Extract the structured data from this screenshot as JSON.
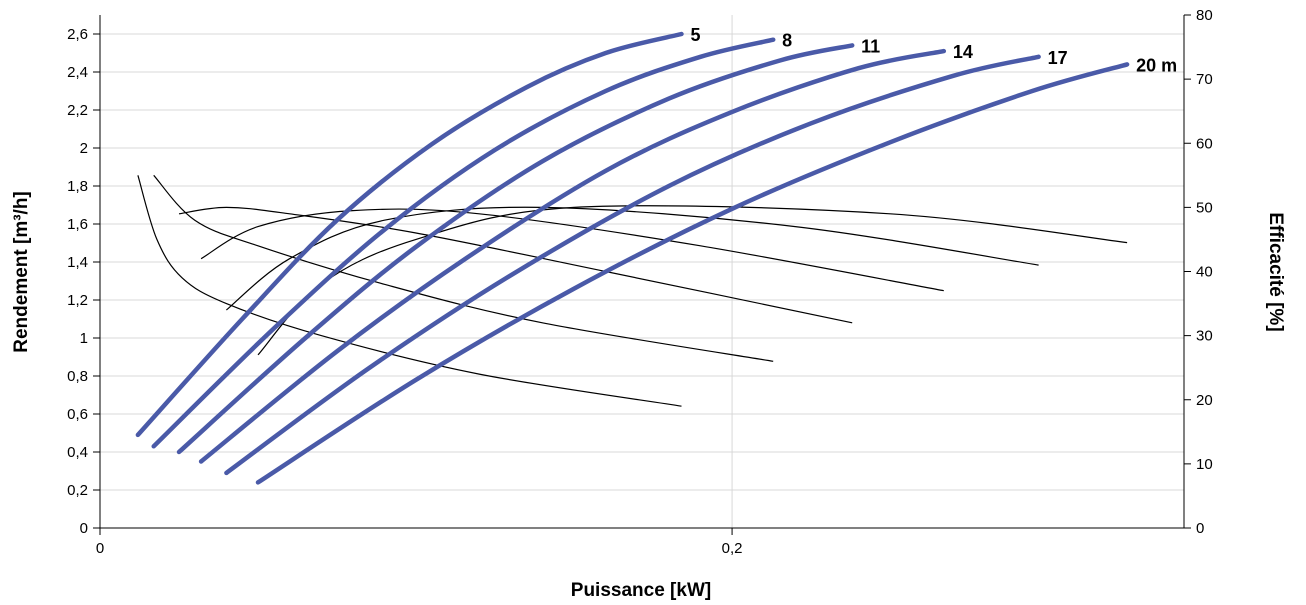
{
  "chart_data": {
    "type": "line",
    "xlabel": "Puissance [kW]",
    "ylabel": "Rendement [m³/h]",
    "y2label": "Efficacité [%]",
    "xlim": [
      0,
      0.343
    ],
    "ylim": [
      0,
      2.7
    ],
    "y2lim": [
      0,
      80
    ],
    "x_ticks": [
      {
        "value": 0,
        "label": "0"
      },
      {
        "value": 0.2,
        "label": "0,2"
      }
    ],
    "y_ticks": [
      {
        "value": 0,
        "label": "0"
      },
      {
        "value": 0.2,
        "label": "0,2"
      },
      {
        "value": 0.4,
        "label": "0,4"
      },
      {
        "value": 0.6,
        "label": "0,6"
      },
      {
        "value": 0.8,
        "label": "0,8"
      },
      {
        "value": 1.0,
        "label": "1"
      },
      {
        "value": 1.2,
        "label": "1,2"
      },
      {
        "value": 1.4,
        "label": "1,4"
      },
      {
        "value": 1.6,
        "label": "1,6"
      },
      {
        "value": 1.8,
        "label": "1,8"
      },
      {
        "value": 2.0,
        "label": "2"
      },
      {
        "value": 2.2,
        "label": "2,2"
      },
      {
        "value": 2.4,
        "label": "2,4"
      },
      {
        "value": 2.6,
        "label": "2,6"
      }
    ],
    "y2_ticks": [
      {
        "value": 0,
        "label": "0"
      },
      {
        "value": 10,
        "label": "10"
      },
      {
        "value": 20,
        "label": "20"
      },
      {
        "value": 30,
        "label": "30"
      },
      {
        "value": 40,
        "label": "40"
      },
      {
        "value": 50,
        "label": "50"
      },
      {
        "value": 60,
        "label": "60"
      },
      {
        "value": 70,
        "label": "70"
      },
      {
        "value": 80,
        "label": "80"
      }
    ],
    "grid": true,
    "flow_color": "#4a5aa8",
    "efficiency_color": "#000000",
    "flow_series": [
      {
        "name": "5",
        "label": "5",
        "x": [
          0.012,
          0.045,
          0.075,
          0.105,
          0.135,
          0.16,
          0.184
        ],
        "y": [
          0.49,
          1.1,
          1.62,
          2.02,
          2.32,
          2.5,
          2.6
        ]
      },
      {
        "name": "8",
        "label": "8",
        "x": [
          0.017,
          0.055,
          0.09,
          0.125,
          0.16,
          0.19,
          0.213
        ],
        "y": [
          0.43,
          1.05,
          1.57,
          1.99,
          2.3,
          2.48,
          2.57
        ]
      },
      {
        "name": "11",
        "label": "11",
        "x": [
          0.025,
          0.065,
          0.1,
          0.14,
          0.18,
          0.215,
          0.238
        ],
        "y": [
          0.4,
          1.0,
          1.48,
          1.93,
          2.26,
          2.46,
          2.54
        ]
      },
      {
        "name": "14",
        "label": "14",
        "x": [
          0.032,
          0.075,
          0.115,
          0.16,
          0.2,
          0.24,
          0.267
        ],
        "y": [
          0.35,
          0.93,
          1.41,
          1.88,
          2.19,
          2.42,
          2.51
        ]
      },
      {
        "name": "17",
        "label": "17",
        "x": [
          0.04,
          0.085,
          0.13,
          0.18,
          0.225,
          0.27,
          0.297
        ],
        "y": [
          0.29,
          0.84,
          1.33,
          1.8,
          2.13,
          2.38,
          2.48
        ]
      },
      {
        "name": "20 m",
        "label": "20 m",
        "x": [
          0.05,
          0.1,
          0.15,
          0.2,
          0.25,
          0.295,
          0.325
        ],
        "y": [
          0.24,
          0.78,
          1.26,
          1.68,
          2.03,
          2.3,
          2.44
        ]
      }
    ],
    "efficiency_series": [
      {
        "x": [
          0.012,
          0.018,
          0.026,
          0.04,
          0.07,
          0.12,
          0.184
        ],
        "y2": [
          55,
          45,
          39,
          35,
          30,
          24,
          19
        ]
      },
      {
        "x": [
          0.017,
          0.03,
          0.05,
          0.09,
          0.14,
          0.213
        ],
        "y2": [
          55,
          48,
          44,
          38,
          32,
          26
        ]
      },
      {
        "x": [
          0.025,
          0.04,
          0.06,
          0.1,
          0.16,
          0.238
        ],
        "y2": [
          49,
          50,
          49,
          46,
          40,
          32
        ]
      },
      {
        "x": [
          0.032,
          0.05,
          0.08,
          0.12,
          0.19,
          0.267
        ],
        "y2": [
          42,
          47,
          49.5,
          49,
          44,
          37
        ]
      },
      {
        "x": [
          0.04,
          0.06,
          0.09,
          0.14,
          0.22,
          0.297
        ],
        "y2": [
          34,
          42,
          48,
          50,
          47,
          41
        ]
      },
      {
        "x": [
          0.05,
          0.07,
          0.1,
          0.15,
          0.25,
          0.325
        ],
        "y2": [
          27,
          38,
          45,
          50,
          49,
          44.5
        ]
      }
    ]
  }
}
